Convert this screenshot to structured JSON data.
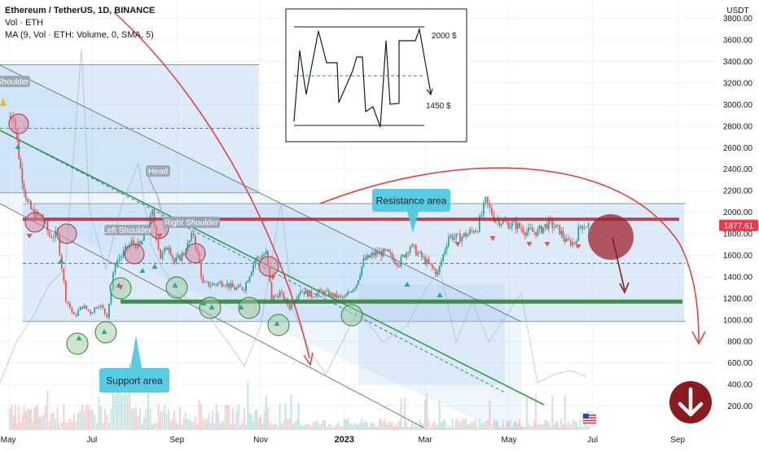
{
  "header": {
    "symbol_line": "Ethereum / TetherUS, 1D, BINANCE",
    "vol_line": "Vol · ETH",
    "ma_line": "MA (9, Vol · ETH: Volume, 0, SMA, 5)"
  },
  "price_axis": {
    "unit": "USDT",
    "ticks": [
      "3800.00",
      "3600.00",
      "3400.00",
      "3200.00",
      "3000.00",
      "2800.00",
      "2600.00",
      "2400.00",
      "2200.00",
      "2000.00",
      "1800.00",
      "1600.00",
      "1400.00",
      "1200.00",
      "1000.00",
      "800.00",
      "600.00",
      "400.00",
      "200.00"
    ],
    "last_price": "1877.61"
  },
  "time_axis": {
    "ticks": [
      "May",
      "Jul",
      "Sep",
      "Nov",
      "2023",
      "Mar",
      "May",
      "Jul",
      "Sep"
    ]
  },
  "annotations": {
    "head_shoulders": [
      "Shoulder",
      "Head",
      "Left Shoulder",
      "Right Shoulder"
    ],
    "resistance_label": "Resistance area",
    "support_label": "Support area",
    "inset_top_label": "2000 $",
    "inset_bottom_label": "1450 $"
  },
  "colors": {
    "bull": "#26a69a",
    "bear": "#ef5350",
    "resistance_line": "#b22833",
    "support_line": "#2e7d32",
    "channel_fill": "#9fc6ef",
    "callout_fill": "#4ec9e0",
    "label_fill": "#9aa5b1",
    "arrow_red": "#e53935",
    "price_tag": "#f23645",
    "down_badge": "#8b1a1f"
  },
  "chart_data": {
    "type": "candlestick",
    "symbol": "ETH/USDT",
    "timeframe": "1D",
    "exchange": "BINANCE",
    "ylim": [
      180,
      4150
    ],
    "x_range": [
      "2022-04-25",
      "2023-09-08"
    ],
    "last_price": 1877.61,
    "resistance_level": 1935,
    "support_level": 1170,
    "dashed_midline_level": 1525,
    "box_levels": {
      "upper_box_top": 3370,
      "upper_box_bottom": 2180,
      "mid_dashed": 2780,
      "lower_box_top": 2080,
      "lower_box_bottom": 985
    },
    "close_series": [
      {
        "date": "2022-05-01",
        "close": 2880
      },
      {
        "date": "2022-05-05",
        "close": 2920
      },
      {
        "date": "2022-05-10",
        "close": 2400
      },
      {
        "date": "2022-05-15",
        "close": 2080
      },
      {
        "date": "2022-05-20",
        "close": 1970
      },
      {
        "date": "2022-05-25",
        "close": 1960
      },
      {
        "date": "2022-05-31",
        "close": 1780
      },
      {
        "date": "2022-06-06",
        "close": 1790
      },
      {
        "date": "2022-06-12",
        "close": 1200
      },
      {
        "date": "2022-06-18",
        "close": 1030
      },
      {
        "date": "2022-06-24",
        "close": 1130
      },
      {
        "date": "2022-06-30",
        "close": 1070
      },
      {
        "date": "2022-07-06",
        "close": 1150
      },
      {
        "date": "2022-07-12",
        "close": 1040
      },
      {
        "date": "2022-07-18",
        "close": 1530
      },
      {
        "date": "2022-07-24",
        "close": 1620
      },
      {
        "date": "2022-07-30",
        "close": 1720
      },
      {
        "date": "2022-08-05",
        "close": 1680
      },
      {
        "date": "2022-08-11",
        "close": 1880
      },
      {
        "date": "2022-08-14",
        "close": 1980
      },
      {
        "date": "2022-08-20",
        "close": 1580
      },
      {
        "date": "2022-08-26",
        "close": 1700
      },
      {
        "date": "2022-08-30",
        "close": 1530
      },
      {
        "date": "2022-09-06",
        "close": 1620
      },
      {
        "date": "2022-09-13",
        "close": 1800
      },
      {
        "date": "2022-09-20",
        "close": 1330
      },
      {
        "date": "2022-09-27",
        "close": 1330
      },
      {
        "date": "2022-10-05",
        "close": 1350
      },
      {
        "date": "2022-10-13",
        "close": 1290
      },
      {
        "date": "2022-10-20",
        "close": 1300
      },
      {
        "date": "2022-10-28",
        "close": 1560
      },
      {
        "date": "2022-11-05",
        "close": 1620
      },
      {
        "date": "2022-11-09",
        "close": 1200
      },
      {
        "date": "2022-11-15",
        "close": 1250
      },
      {
        "date": "2022-11-22",
        "close": 1120
      },
      {
        "date": "2022-11-30",
        "close": 1280
      },
      {
        "date": "2022-12-08",
        "close": 1230
      },
      {
        "date": "2022-12-15",
        "close": 1260
      },
      {
        "date": "2022-12-25",
        "close": 1220
      },
      {
        "date": "2023-01-01",
        "close": 1200
      },
      {
        "date": "2023-01-10",
        "close": 1340
      },
      {
        "date": "2023-01-15",
        "close": 1550
      },
      {
        "date": "2023-01-24",
        "close": 1620
      },
      {
        "date": "2023-02-01",
        "close": 1620
      },
      {
        "date": "2023-02-10",
        "close": 1530
      },
      {
        "date": "2023-02-18",
        "close": 1690
      },
      {
        "date": "2023-02-25",
        "close": 1600
      },
      {
        "date": "2023-03-10",
        "close": 1430
      },
      {
        "date": "2023-03-18",
        "close": 1780
      },
      {
        "date": "2023-03-25",
        "close": 1760
      },
      {
        "date": "2023-04-01",
        "close": 1800
      },
      {
        "date": "2023-04-08",
        "close": 1860
      },
      {
        "date": "2023-04-14",
        "close": 2100
      },
      {
        "date": "2023-04-20",
        "close": 1950
      },
      {
        "date": "2023-04-28",
        "close": 1900
      },
      {
        "date": "2023-05-06",
        "close": 1880
      },
      {
        "date": "2023-05-14",
        "close": 1820
      },
      {
        "date": "2023-05-22",
        "close": 1820
      },
      {
        "date": "2023-05-30",
        "close": 1900
      },
      {
        "date": "2023-06-07",
        "close": 1830
      },
      {
        "date": "2023-06-12",
        "close": 1720
      },
      {
        "date": "2023-06-18",
        "close": 1720
      },
      {
        "date": "2023-06-22",
        "close": 1880
      },
      {
        "date": "2023-06-28",
        "close": 1880
      }
    ],
    "inset": {
      "type": "line",
      "labels": [
        "2000 $",
        "1450 $"
      ]
    }
  }
}
